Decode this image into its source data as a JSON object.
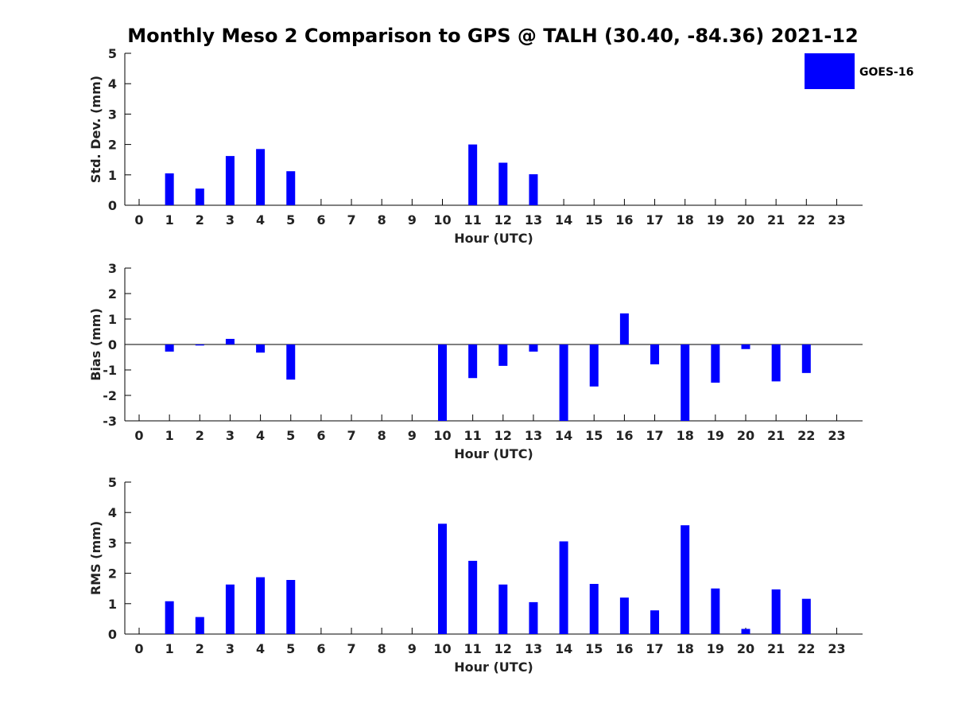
{
  "title": "Monthly Meso 2 Comparison to GPS @ TALH (30.40, -84.36) 2021-12",
  "legend": {
    "label": "GOES-16",
    "color": "#0000ff",
    "placement": "top-right"
  },
  "chart_data": [
    {
      "type": "bar",
      "xlabel": "Hour (UTC)",
      "ylabel": "Std. Dev. (mm)",
      "ylim": [
        0,
        5
      ],
      "yticks": [
        "0",
        "1",
        "2",
        "3",
        "4",
        "5"
      ],
      "categories": [
        "0",
        "1",
        "2",
        "3",
        "4",
        "5",
        "6",
        "7",
        "8",
        "9",
        "10",
        "11",
        "12",
        "13",
        "14",
        "15",
        "16",
        "17",
        "18",
        "19",
        "20",
        "21",
        "22",
        "23"
      ],
      "series": [
        {
          "name": "GOES-16",
          "values": [
            null,
            1.05,
            0.55,
            1.62,
            1.85,
            1.12,
            null,
            null,
            null,
            null,
            null,
            2.0,
            1.4,
            1.02,
            null,
            null,
            null,
            null,
            null,
            null,
            null,
            null,
            null,
            null
          ]
        }
      ]
    },
    {
      "type": "bar",
      "xlabel": "Hour (UTC)",
      "ylabel": "Bias (mm)",
      "ylim": [
        -3,
        3
      ],
      "yticks": [
        "-3",
        "-2",
        "-1",
        "0",
        "1",
        "2",
        "3"
      ],
      "zeroline": true,
      "categories": [
        "0",
        "1",
        "2",
        "3",
        "4",
        "5",
        "6",
        "7",
        "8",
        "9",
        "10",
        "11",
        "12",
        "13",
        "14",
        "15",
        "16",
        "17",
        "18",
        "19",
        "20",
        "21",
        "22",
        "23"
      ],
      "series": [
        {
          "name": "GOES-16",
          "values": [
            null,
            -0.28,
            -0.04,
            0.22,
            -0.32,
            -1.38,
            null,
            null,
            null,
            null,
            -3.0,
            -1.32,
            -0.84,
            -0.28,
            -3.0,
            -1.65,
            1.22,
            -0.78,
            -3.0,
            -1.5,
            -0.18,
            -1.45,
            -1.12,
            null
          ]
        }
      ]
    },
    {
      "type": "bar",
      "xlabel": "Hour (UTC)",
      "ylabel": "RMS (mm)",
      "ylim": [
        0,
        5
      ],
      "yticks": [
        "0",
        "1",
        "2",
        "3",
        "4",
        "5"
      ],
      "categories": [
        "0",
        "1",
        "2",
        "3",
        "4",
        "5",
        "6",
        "7",
        "8",
        "9",
        "10",
        "11",
        "12",
        "13",
        "14",
        "15",
        "16",
        "17",
        "18",
        "19",
        "20",
        "21",
        "22",
        "23"
      ],
      "series": [
        {
          "name": "GOES-16",
          "values": [
            null,
            1.08,
            0.56,
            1.63,
            1.87,
            1.78,
            null,
            null,
            null,
            null,
            3.63,
            2.41,
            1.63,
            1.05,
            3.05,
            1.65,
            1.2,
            0.78,
            3.58,
            1.5,
            0.17,
            1.47,
            1.16,
            null
          ]
        }
      ]
    }
  ]
}
